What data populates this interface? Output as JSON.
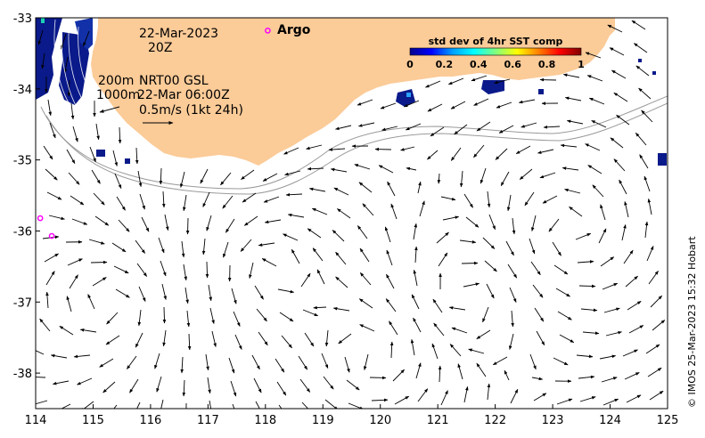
{
  "map": {
    "date_label": "22-Mar-2023",
    "time_label": "20Z",
    "isobath_labels": [
      "200m",
      "1000m"
    ],
    "product_label": "NRT00 GSL",
    "product_time": "22-Mar 06:00Z",
    "scale_label": "0.5m/s (1kt 24h)",
    "argo_label": "Argo",
    "credit": "© IMOS 25-Mar-2023 15:32 Hobart",
    "land_color": "#fbcb98",
    "argo_color": "#ff00ff",
    "x_axis": {
      "min": 114,
      "max": 125,
      "ticks": [
        114,
        115,
        116,
        117,
        118,
        119,
        120,
        121,
        122,
        123,
        124,
        125
      ]
    },
    "y_axis": {
      "min": -38.5,
      "max": -33,
      "ticks": [
        -33,
        -34,
        -35,
        -36,
        -37,
        -38
      ]
    },
    "colorbar": {
      "title": "std dev of 4hr SST comp",
      "ticks": [
        "0",
        "0.2",
        "0.4",
        "0.6",
        "0.8",
        "1"
      ],
      "colors": [
        "#00008f",
        "#0000ff",
        "#00a0ff",
        "#00ffff",
        "#80ff80",
        "#ffff00",
        "#ff8000",
        "#ff0000",
        "#800000"
      ]
    },
    "argo_floats": [
      {
        "lon": 118.04,
        "lat": -33.18
      },
      {
        "lon": 114.08,
        "lat": -35.82
      },
      {
        "lon": 114.28,
        "lat": -36.07
      }
    ]
  }
}
